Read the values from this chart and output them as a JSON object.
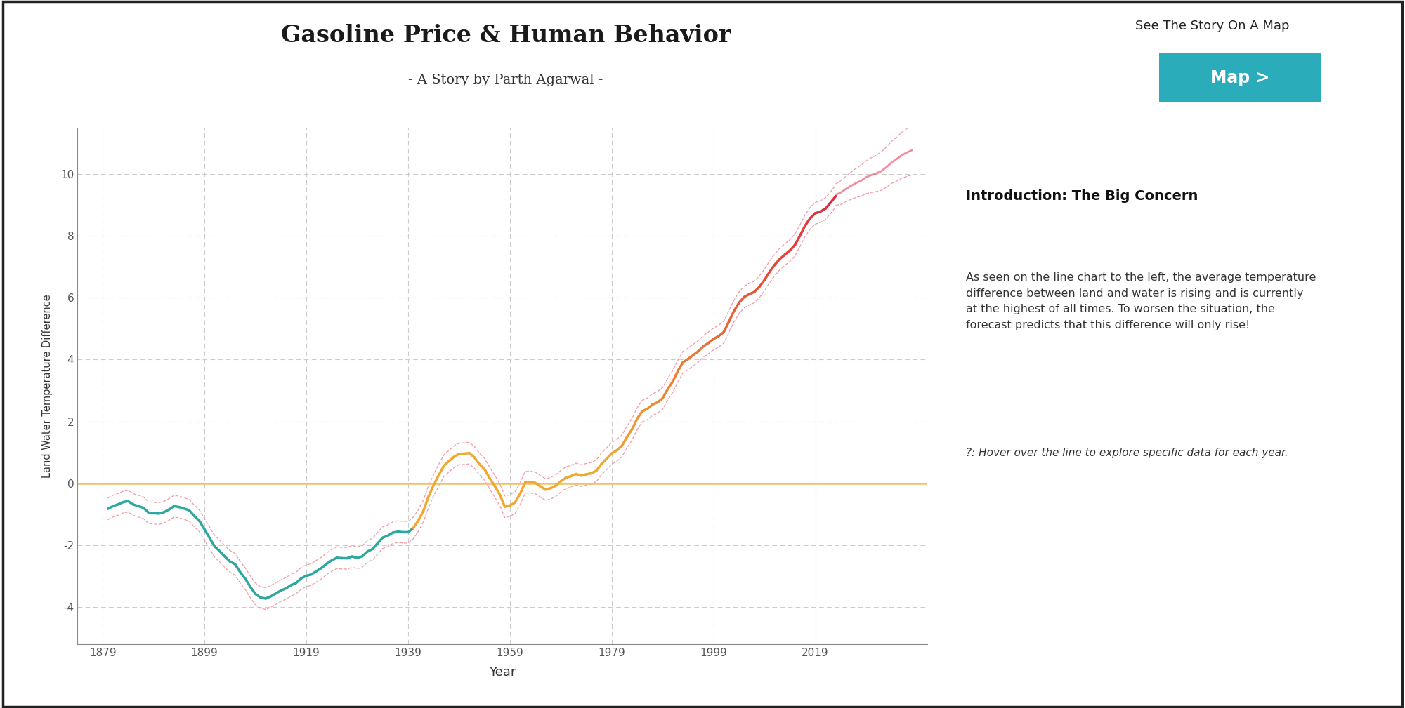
{
  "title": "Gasoline Price & Human Behavior",
  "subtitle": "- A Story by Parth Agarwal -",
  "map_label": "See The Story On A Map",
  "map_button": "Map >",
  "map_button_color": "#2aacbb",
  "xlabel": "Year",
  "ylabel": "Land Water Temperature Difference",
  "ylim": [
    -5.2,
    11.5
  ],
  "yticks": [
    -4,
    -2,
    0,
    2,
    4,
    6,
    8,
    10
  ],
  "xticks": [
    1879,
    1899,
    1919,
    1939,
    1959,
    1979,
    1999,
    2019
  ],
  "xlim": [
    1874,
    2041
  ],
  "intro_title": "Introduction: The Big Concern",
  "intro_text1": "As seen on the line chart to the left, the average temperature\ndifference between land and water is rising and is currently\nat the highest of all times. To worsen the situation, the\nforecast predicts that this difference will only rise!",
  "intro_text2": "?: Hover over the line to explore specific data for each year.",
  "bg_color": "#ffffff",
  "grid_color": "#cccccc",
  "teal_color": "#2ca89e",
  "orange_color": "#f0a830",
  "red_color": "#e8304a",
  "band_color": "#f08090",
  "zero_line_color": "#f5c060"
}
